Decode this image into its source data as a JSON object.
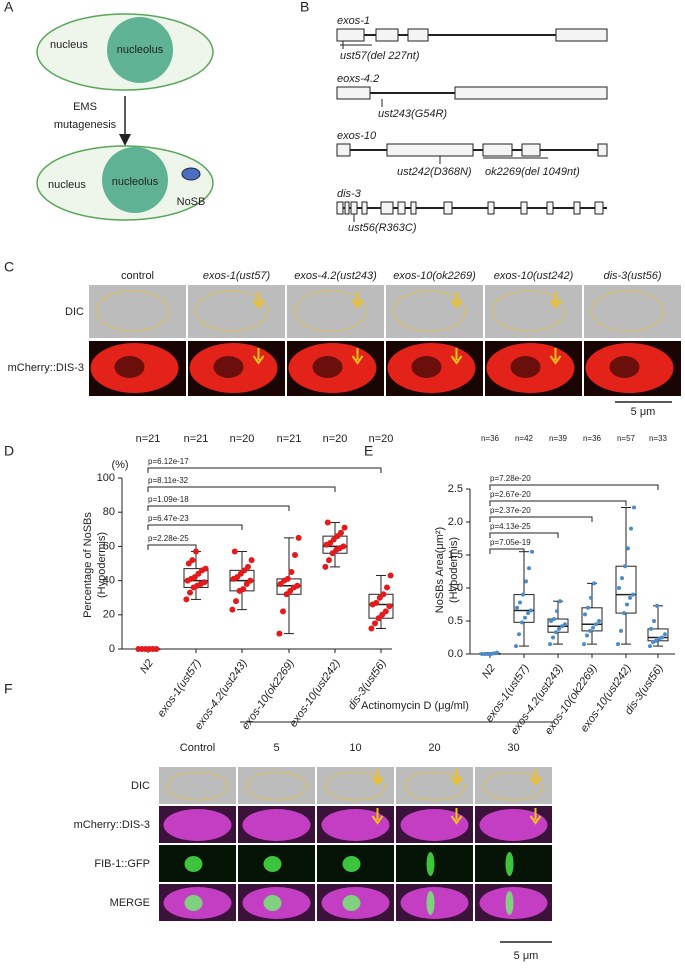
{
  "panel_labels": [
    "A",
    "B",
    "C",
    "D",
    "E",
    "F"
  ],
  "panel_a": {
    "top": {
      "nucleus": "nucleus",
      "nucleolus": "nucleolus"
    },
    "arrow_label": [
      "EMS",
      "mutagenesis"
    ],
    "bottom": {
      "nucleus": "nucleus",
      "nucleolus": "nucleolus",
      "nosb": "NoSB"
    }
  },
  "panel_b": {
    "genes": [
      {
        "name": "exos-1",
        "alleles": [
          "ust57(del 227nt)"
        ]
      },
      {
        "name": "eoxs-4.2",
        "alleles": [
          "ust243(G54R)"
        ]
      },
      {
        "name": "exos-10",
        "alleles": [
          "ust242(D368N)",
          "ok2269(del 1049nt)"
        ]
      },
      {
        "name": "dis-3",
        "alleles": [
          "ust56(R363C)"
        ]
      }
    ]
  },
  "panel_c": {
    "columns": [
      "control",
      "exos-1(ust57)",
      "exos-4.2(ust243)",
      "exos-10(ok2269)",
      "exos-10(ust242)",
      "dis-3(ust56)"
    ],
    "rows": [
      "DIC",
      "mCherry::DIS-3"
    ],
    "scale_bar": "5 μm"
  },
  "chart_data": [
    {
      "type": "box",
      "ylabel": [
        "Percentage of NoSBs",
        "(Hypodermis)"
      ],
      "unit": "(%)",
      "categories": [
        "N2",
        "exos-1(ust57)",
        "exos-4.2(ust243)",
        "exos-10(ok2269)",
        "exos-10(ust242)",
        "dis-3(ust56)"
      ],
      "n_labels": [
        "n=21",
        "n=21",
        "n=20",
        "n=21",
        "n=20",
        "n=20"
      ],
      "p_values": [
        "p=2.28e-25",
        "p=6.47e-23",
        "p=1.09e-18",
        "p=8.11e-32",
        "p=6.12e-17"
      ],
      "ylim": [
        0,
        100
      ],
      "yticks": [
        0,
        20,
        40,
        60,
        80,
        100
      ],
      "color": "#e41a1c",
      "boxes": [
        {
          "min": 0,
          "q1": 0,
          "median": 0,
          "q3": 0,
          "max": 0,
          "points": [
            0,
            0,
            0,
            0,
            0,
            0
          ]
        },
        {
          "min": 29,
          "q1": 36,
          "median": 40,
          "q3": 47,
          "max": 57,
          "points": [
            29,
            33,
            36,
            37,
            38,
            39,
            40,
            41,
            42,
            44,
            46,
            47,
            50,
            52,
            57
          ]
        },
        {
          "min": 23,
          "q1": 34,
          "median": 40,
          "q3": 46,
          "max": 57,
          "points": [
            23,
            28,
            34,
            35,
            38,
            40,
            41,
            42,
            44,
            46,
            48,
            52,
            57
          ]
        },
        {
          "min": 9,
          "q1": 32,
          "median": 37,
          "q3": 41,
          "max": 65,
          "points": [
            9,
            22,
            32,
            34,
            36,
            37,
            38,
            40,
            41,
            45,
            55,
            65
          ]
        },
        {
          "min": 48,
          "q1": 56,
          "median": 60,
          "q3": 66,
          "max": 74,
          "points": [
            48,
            52,
            56,
            58,
            59,
            60,
            61,
            62,
            64,
            66,
            68,
            71,
            74
          ]
        },
        {
          "min": 12,
          "q1": 18,
          "median": 26,
          "q3": 32,
          "max": 43,
          "points": [
            12,
            15,
            18,
            20,
            22,
            25,
            26,
            27,
            30,
            32,
            36,
            43
          ]
        }
      ]
    },
    {
      "type": "box",
      "ylabel": [
        "NoSBs  Area(μm²)",
        "(Hypodermis)"
      ],
      "categories": [
        "N2",
        "exos-1(ust57)",
        "exos-4.2(ust243)",
        "exos-10(ok2269)",
        "exos-10(ust242)",
        "dis-3(ust56)"
      ],
      "n_labels": [
        "n=36",
        "n=42",
        "n=39",
        "n=36",
        "n=57",
        "n=33"
      ],
      "p_values": [
        "p=7.05e-19",
        "p=4.13e-25",
        "p=2.37e-20",
        "p=2.67e-20",
        "p=7.28e-20"
      ],
      "ylim": [
        0,
        2.5
      ],
      "yticks": [
        {
          "value": 0,
          "label": "0.0"
        },
        0.5,
        {
          "value": 1,
          "label": "1.0"
        },
        1.5,
        {
          "value": 2,
          "label": "2.0"
        },
        2.5
      ],
      "color": "#4a8bc9",
      "boxes": [
        {
          "min": 0,
          "q1": 0,
          "median": 0,
          "q3": 0.01,
          "max": 0.02,
          "points": [
            0,
            0,
            0,
            0,
            0.01,
            0.02
          ]
        },
        {
          "min": 0.12,
          "q1": 0.48,
          "median": 0.66,
          "q3": 0.9,
          "max": 1.55,
          "points": [
            0.12,
            0.3,
            0.48,
            0.55,
            0.62,
            0.66,
            0.7,
            0.78,
            0.9,
            1.1,
            1.3,
            1.55
          ]
        },
        {
          "min": 0.15,
          "q1": 0.33,
          "median": 0.42,
          "q3": 0.53,
          "max": 0.8,
          "points": [
            0.15,
            0.25,
            0.33,
            0.38,
            0.42,
            0.45,
            0.5,
            0.53,
            0.65,
            0.8
          ]
        },
        {
          "min": 0.15,
          "q1": 0.35,
          "median": 0.45,
          "q3": 0.7,
          "max": 1.07,
          "points": [
            0.15,
            0.28,
            0.35,
            0.4,
            0.45,
            0.5,
            0.6,
            0.7,
            0.85,
            1.07
          ]
        },
        {
          "min": 0.15,
          "q1": 0.62,
          "median": 0.9,
          "q3": 1.33,
          "max": 2.22,
          "points": [
            0.15,
            0.35,
            0.62,
            0.75,
            0.85,
            0.9,
            1.0,
            1.15,
            1.33,
            1.6,
            1.9,
            2.22
          ]
        },
        {
          "min": 0.12,
          "q1": 0.2,
          "median": 0.25,
          "q3": 0.38,
          "max": 0.73,
          "points": [
            0.12,
            0.18,
            0.2,
            0.23,
            0.25,
            0.3,
            0.38,
            0.5,
            0.73
          ]
        }
      ]
    }
  ],
  "panel_f": {
    "title": "Actinomycin D  (μg/ml)",
    "columns": [
      "Control",
      "5",
      "10",
      "20",
      "30"
    ],
    "rows": [
      "DIC",
      "mCherry::DIS-3",
      "FIB-1::GFP",
      "MERGE"
    ],
    "scale_bar": "5 μm"
  }
}
